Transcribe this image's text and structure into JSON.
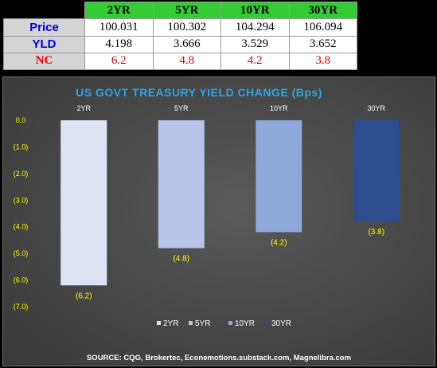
{
  "table": {
    "headers": [
      "2YR",
      "5YR",
      "10YR",
      "30YR"
    ],
    "rows": [
      {
        "label": "Price",
        "values": [
          "100.031",
          "100.302",
          "104.294",
          "106.094"
        ]
      },
      {
        "label": "YLD",
        "values": [
          "4.198",
          "3.666",
          "3.529",
          "3.652"
        ]
      },
      {
        "label": "NC",
        "values": [
          "6.2",
          "4.8",
          "4.2",
          "3.8"
        ]
      }
    ]
  },
  "chart_data": {
    "type": "bar",
    "title": "US GOVT TREASURY YIELD CHANGE (Bps)",
    "categories": [
      "2YR",
      "5YR",
      "10YR",
      "30YR"
    ],
    "values": [
      -6.2,
      -4.8,
      -4.2,
      -3.8
    ],
    "data_labels": [
      "(6.2)",
      "(4.8)",
      "(4.2)",
      "(3.8)"
    ],
    "ylim": [
      -7,
      0
    ],
    "y_ticks": [
      "0.0",
      "(1.0)",
      "(2.0)",
      "(3.0)",
      "(4.0)",
      "(5.0)",
      "(6.0)",
      "(7.0)"
    ],
    "grid": false,
    "legend_position": "bottom",
    "legend": [
      "2YR",
      "5YR",
      "10YR",
      "30YR"
    ],
    "source": "SOURCE: CQG, Brokertec, Econemotions.substack.com, Magnelibra.com",
    "colors": [
      "#dde3f2",
      "#b6c5e8",
      "#8ea8dc",
      "#2d4d8e"
    ]
  },
  "colors": {
    "header_green": "#33cc33",
    "label_gray": "#d4d4d4",
    "title_blue": "#2aa7e6",
    "axis_yellow": "#ffff00"
  }
}
